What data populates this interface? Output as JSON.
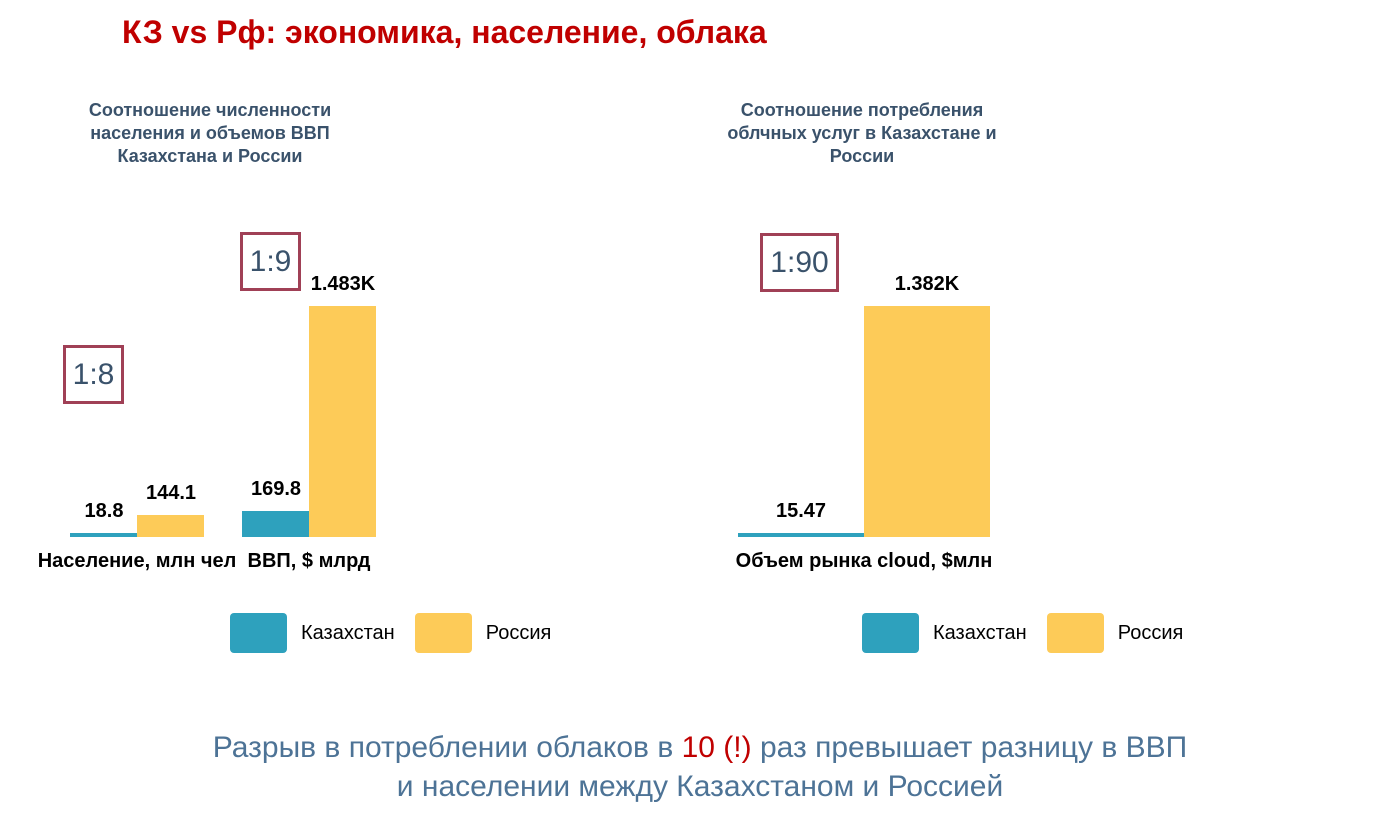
{
  "slide": {
    "title": "КЗ vs Рф: экономика, население, облака"
  },
  "colors": {
    "kazakhstan_teal": "#2EA1BD",
    "russia_yellow": "#FDCB58",
    "title_red": "#C00000",
    "heading_slate": "#3A526B",
    "ratio_box_border": "#A04056",
    "conclusion_blue": "#4D7396"
  },
  "chart_data": [
    {
      "type": "bar",
      "title": "Соотношение численности населения и объемов ВВП Казахстана и России",
      "title_multiline": "Соотношение численности\nнаселения и объемов ВВП\nКазахстана и России",
      "categories": [
        "Население, млн чел",
        "ВВП, $ млрд"
      ],
      "series": [
        {
          "name": "Казахстан",
          "color": "#2EA1BD",
          "values": [
            18.8,
            169.8
          ],
          "labels": [
            "18.8",
            "169.8"
          ]
        },
        {
          "name": "Россия",
          "color": "#FDCB58",
          "values": [
            144.1,
            1483
          ],
          "labels": [
            "144.1",
            "1.483K"
          ]
        }
      ],
      "ratio_annotations": [
        "1:8",
        "1:9"
      ],
      "ylim": [
        0,
        1483
      ],
      "grid": false,
      "axes_visible": false,
      "legend_position": "bottom"
    },
    {
      "type": "bar",
      "title": "Соотношение потребления облчных услуг в Казахстане и России",
      "title_multiline": "Соотношение потребления\nоблчных услуг в Казахстане и\nРоссии",
      "categories": [
        "Объем рынка cloud, $млн"
      ],
      "series": [
        {
          "name": "Казахстан",
          "color": "#2EA1BD",
          "values": [
            15.47
          ],
          "labels": [
            "15.47"
          ]
        },
        {
          "name": "Россия",
          "color": "#FDCB58",
          "values": [
            1382
          ],
          "labels": [
            "1.382K"
          ]
        }
      ],
      "ratio_annotations": [
        "1:90"
      ],
      "ylim": [
        0,
        1382
      ],
      "grid": false,
      "axes_visible": false,
      "legend_position": "bottom"
    }
  ],
  "legend": {
    "items": [
      {
        "label": "Казахстан",
        "color": "#2EA1BD"
      },
      {
        "label": "Россия",
        "color": "#FDCB58"
      }
    ]
  },
  "conclusion": {
    "line1_before": "Разрыв в потреблении облаков в ",
    "highlight": "10 (!)",
    "line1_after": " раз превышает разницу в ВВП",
    "line2": "и населении между Казахстаном и Россией"
  }
}
